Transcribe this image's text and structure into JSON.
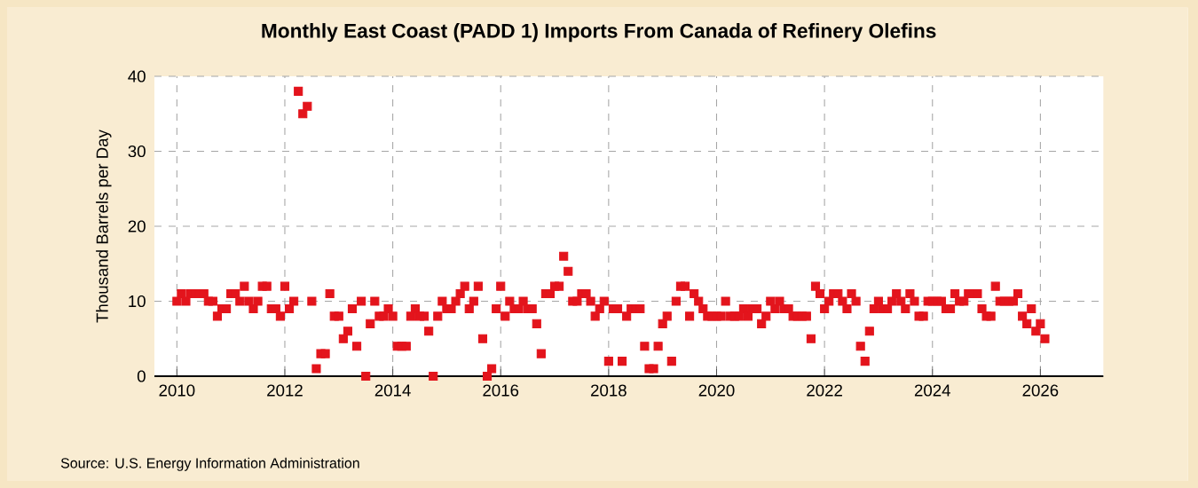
{
  "chart_data": {
    "type": "scatter",
    "title": "Monthly East Coast (PADD 1) Imports From Canada of Refinery Olefins",
    "ylabel": "Thousand Barrels per Day",
    "annotations": [
      "Source: U.S. Energy Information Administration"
    ],
    "x": [
      "2010-01",
      "2010-02",
      "2010-03",
      "2010-04",
      "2010-05",
      "2010-06",
      "2010-07",
      "2010-08",
      "2010-09",
      "2010-10",
      "2010-11",
      "2010-12",
      "2011-01",
      "2011-02",
      "2011-03",
      "2011-04",
      "2011-05",
      "2011-06",
      "2011-07",
      "2011-08",
      "2011-09",
      "2011-10",
      "2011-11",
      "2011-12",
      "2012-01",
      "2012-02",
      "2012-03",
      "2012-04",
      "2012-05",
      "2012-06",
      "2012-07",
      "2012-08",
      "2012-09",
      "2012-10",
      "2012-11",
      "2012-12",
      "2013-01",
      "2013-02",
      "2013-03",
      "2013-04",
      "2013-05",
      "2013-06",
      "2013-07",
      "2013-08",
      "2013-09",
      "2013-10",
      "2013-11",
      "2013-12",
      "2014-01",
      "2014-02",
      "2014-03",
      "2014-04",
      "2014-05",
      "2014-06",
      "2014-07",
      "2014-08",
      "2014-09",
      "2014-10",
      "2014-11",
      "2014-12",
      "2015-01",
      "2015-02",
      "2015-03",
      "2015-04",
      "2015-05",
      "2015-06",
      "2015-07",
      "2015-08",
      "2015-09",
      "2015-10",
      "2015-11",
      "2015-12",
      "2016-01",
      "2016-02",
      "2016-03",
      "2016-04",
      "2016-05",
      "2016-06",
      "2016-07",
      "2016-08",
      "2016-09",
      "2016-10",
      "2016-11",
      "2016-12",
      "2017-01",
      "2017-02",
      "2017-03",
      "2017-04",
      "2017-05",
      "2017-06",
      "2017-07",
      "2017-08",
      "2017-09",
      "2017-10",
      "2017-11",
      "2017-12",
      "2018-01",
      "2018-02",
      "2018-03",
      "2018-04",
      "2018-05",
      "2018-06",
      "2018-07",
      "2018-08",
      "2018-09",
      "2018-10",
      "2018-11",
      "2018-12",
      "2019-01",
      "2019-02",
      "2019-03",
      "2019-04",
      "2019-05",
      "2019-06",
      "2019-07",
      "2019-08",
      "2019-09",
      "2019-10",
      "2019-11",
      "2019-12",
      "2020-01",
      "2020-02",
      "2020-03",
      "2020-04",
      "2020-05",
      "2020-06",
      "2020-07",
      "2020-08",
      "2020-09",
      "2020-10",
      "2020-11",
      "2020-12",
      "2021-01",
      "2021-02",
      "2021-03",
      "2021-04",
      "2021-05",
      "2021-06",
      "2021-07",
      "2021-08",
      "2021-09",
      "2021-10",
      "2021-11",
      "2021-12",
      "2022-01",
      "2022-02",
      "2022-03",
      "2022-04",
      "2022-05",
      "2022-06",
      "2022-07",
      "2022-08",
      "2022-09",
      "2022-10",
      "2022-11",
      "2022-12",
      "2023-01",
      "2023-02",
      "2023-03",
      "2023-04",
      "2023-05",
      "2023-06",
      "2023-07",
      "2023-08",
      "2023-09",
      "2023-10",
      "2023-11",
      "2023-12",
      "2024-01",
      "2024-02",
      "2024-03",
      "2024-04",
      "2024-05",
      "2024-06",
      "2024-07",
      "2024-08",
      "2024-09",
      "2024-10",
      "2024-11",
      "2024-12",
      "2025-01",
      "2025-02",
      "2025-03",
      "2025-04",
      "2025-05",
      "2025-06",
      "2025-07",
      "2025-08",
      "2025-09",
      "2025-10",
      "2025-11",
      "2025-12",
      "2026-01",
      "2026-02"
    ],
    "values": [
      10,
      11,
      10,
      11,
      11,
      11,
      11,
      10,
      10,
      8,
      9,
      9,
      11,
      11,
      10,
      12,
      10,
      9,
      10,
      12,
      12,
      9,
      9,
      8,
      12,
      9,
      10,
      38,
      35,
      36,
      10,
      1,
      3,
      3,
      11,
      8,
      8,
      5,
      6,
      9,
      4,
      10,
      0,
      7,
      10,
      8,
      8,
      9,
      8,
      4,
      4,
      4,
      8,
      9,
      8,
      8,
      6,
      0,
      8,
      10,
      9,
      9,
      10,
      11,
      12,
      9,
      10,
      12,
      5,
      0,
      1,
      9,
      12,
      8,
      10,
      9,
      9,
      10,
      9,
      9,
      7,
      3,
      11,
      11,
      12,
      12,
      16,
      14,
      10,
      10,
      11,
      11,
      10,
      8,
      9,
      10,
      2,
      9,
      9,
      2,
      8,
      9,
      9,
      9,
      4,
      1,
      1,
      4,
      7,
      8,
      2,
      10,
      12,
      12,
      8,
      11,
      10,
      9,
      8,
      8,
      8,
      8,
      10,
      8,
      8,
      8,
      9,
      8,
      9,
      9,
      7,
      8,
      10,
      9,
      10,
      9,
      9,
      8,
      8,
      8,
      8,
      5,
      12,
      11,
      9,
      10,
      11,
      11,
      10,
      9,
      11,
      10,
      4,
      2,
      6,
      9,
      10,
      9,
      9,
      10,
      11,
      10,
      9,
      11,
      10,
      8,
      8,
      10,
      10,
      10,
      10,
      9,
      9,
      11,
      10,
      10,
      11,
      11,
      11,
      9,
      8,
      8,
      12,
      10,
      10,
      10,
      10,
      11,
      8,
      7,
      9,
      6,
      7,
      5
    ],
    "color": "#e3141c",
    "marker": "square",
    "grid": true,
    "xlim": [
      "2009-08",
      "2027-03"
    ],
    "xticks": [
      "2010",
      "2012",
      "2014",
      "2016",
      "2018",
      "2020",
      "2022",
      "2024",
      "2026"
    ],
    "ylim": [
      0,
      40
    ],
    "yticks": [
      0,
      10,
      20,
      30,
      40
    ]
  }
}
